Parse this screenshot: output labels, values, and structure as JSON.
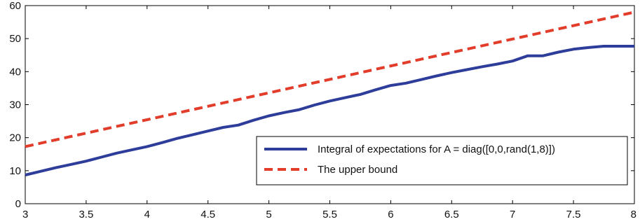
{
  "chart_data": {
    "type": "line",
    "title": "",
    "xlabel": "",
    "ylabel": "",
    "xlim": [
      3,
      8
    ],
    "ylim": [
      0,
      60
    ],
    "xticks": [
      "3",
      "3.5",
      "4",
      "4.5",
      "5",
      "5.5",
      "6",
      "6.5",
      "7",
      "7.5",
      "8"
    ],
    "yticks": [
      "0",
      "10",
      "20",
      "30",
      "40",
      "50",
      "60"
    ],
    "grid": false,
    "legend_position": "bottom-right",
    "series": [
      {
        "name": "Integral of expectations for A = diag([0,0,rand(1,8)])",
        "style": "solid",
        "color": "#2e3d9a",
        "x": [
          3.0,
          3.125,
          3.25,
          3.375,
          3.5,
          3.625,
          3.75,
          3.875,
          4.0,
          4.125,
          4.25,
          4.375,
          4.5,
          4.625,
          4.75,
          4.875,
          5.0,
          5.125,
          5.25,
          5.375,
          5.5,
          5.625,
          5.75,
          5.875,
          6.0,
          6.125,
          6.25,
          6.375,
          6.5,
          6.625,
          6.75,
          6.875,
          7.0,
          7.125,
          7.25,
          7.375,
          7.5,
          7.625,
          7.75,
          7.875,
          8.0
        ],
        "y": [
          8.7,
          9.8,
          10.9,
          11.9,
          12.9,
          14.1,
          15.3,
          16.3,
          17.3,
          18.5,
          19.8,
          20.9,
          22.0,
          23.1,
          23.8,
          25.3,
          26.6,
          27.6,
          28.5,
          29.9,
          31.1,
          32.1,
          33.1,
          34.5,
          35.8,
          36.5,
          37.6,
          38.7,
          39.7,
          40.6,
          41.5,
          42.3,
          43.2,
          44.8,
          44.8,
          45.9,
          46.8,
          47.3,
          47.7,
          47.7,
          47.7
        ],
        "y_note": ""
      },
      {
        "name": "The upper bound",
        "style": "dashed",
        "color": "#e23c2a",
        "x": [
          3,
          8
        ],
        "y": [
          17.3,
          58.0
        ]
      }
    ]
  }
}
